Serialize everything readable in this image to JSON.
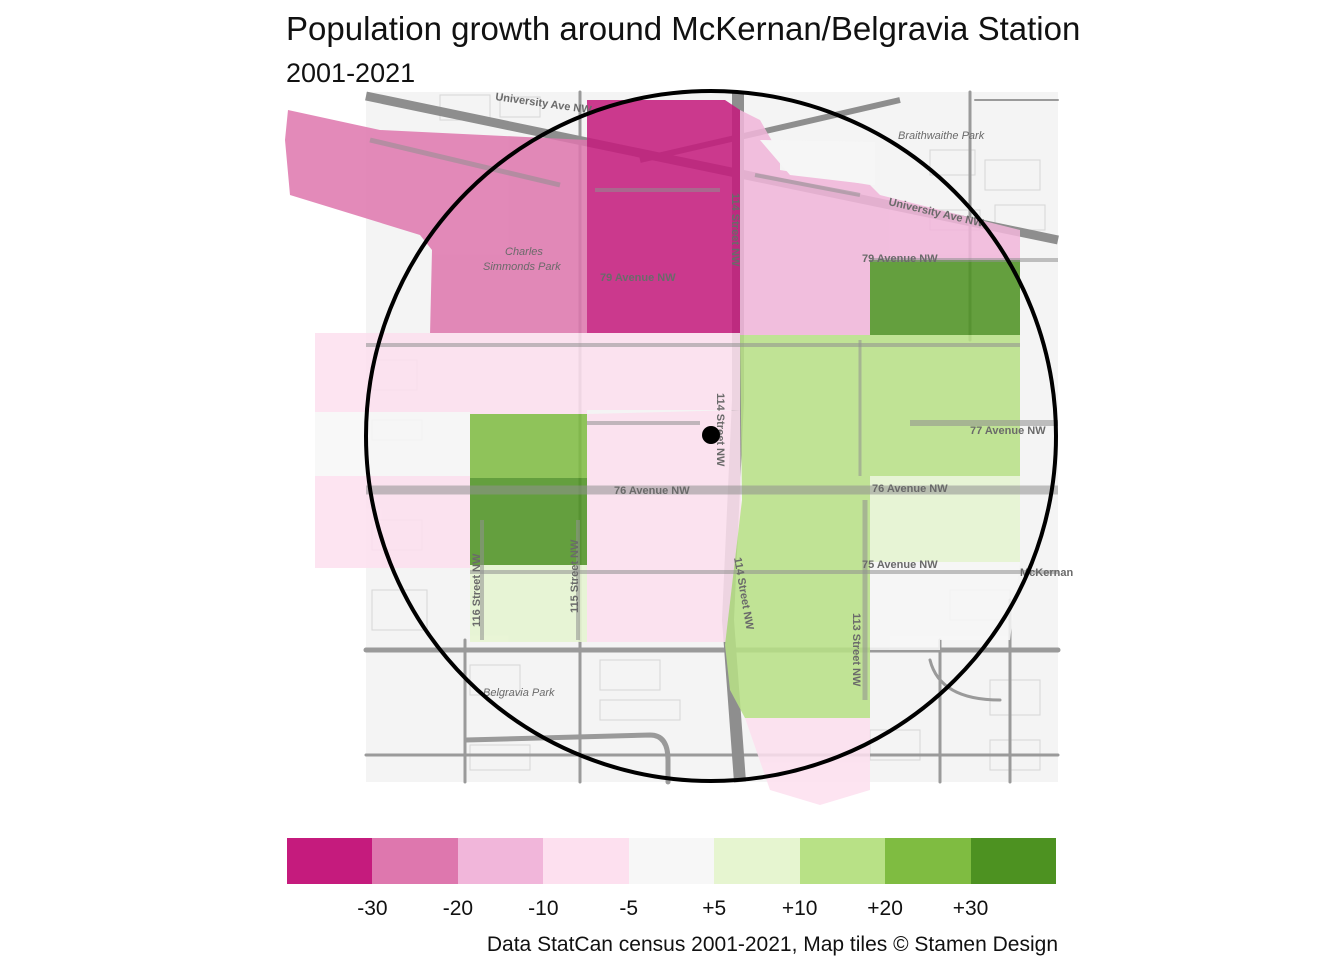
{
  "title": "Population growth around McKernan/Belgravia Station",
  "subtitle": "2001-2021",
  "caption": "Data StatCan census 2001-2021, Map tiles © Stamen Design",
  "map_labels": {
    "university_ave_top": "University Ave NW",
    "university_ave_right": "University Ave NW",
    "braithwaithe_park": "Braithwaithe Park",
    "charles_simmonds_park_1": "Charles",
    "charles_simmonds_park_2": "Simmonds Park",
    "ave79_left": "79 Avenue NW",
    "ave79_right": "79 Avenue NW",
    "ave77": "77 Avenue NW",
    "ave76_left": "76 Avenue NW",
    "ave76_right": "76 Avenue NW",
    "ave75": "75 Avenue NW",
    "mckernan": "McKernan",
    "st114_top": "114 Street NW",
    "st114_mid": "114 Street NW",
    "st114_low": "114 Street NW",
    "st116": "116 Street NW",
    "st115": "115 Street NW",
    "st113": "113 Street NW",
    "belgravia_park": "Belgravia Park"
  },
  "legend": {
    "colors": [
      "#c51b7d",
      "#de77ae",
      "#f1b6da",
      "#fde0ef",
      "#f7f7f7",
      "#e6f5d0",
      "#b8e186",
      "#7fbc41",
      "#4d9221"
    ],
    "tick_labels": [
      "-30",
      "-20",
      "-10",
      "-5",
      "+5",
      "+10",
      "+20",
      "+30"
    ]
  },
  "chart_data": {
    "type": "choropleth",
    "measure": "Population growth 2001-2021",
    "bins": [
      "< -30",
      "-30 to -20",
      "-20 to -10",
      "-10 to -5",
      "-5 to +5",
      "+5 to +10",
      "+10 to +20",
      "+20 to +30",
      "> +30"
    ],
    "station": "McKernan/Belgravia Station",
    "areas_by_class": {
      "strong_decline": 1,
      "decline": 1,
      "moderate_decline": 2,
      "slight_decline": 5,
      "stable": 2,
      "slight_growth": 2,
      "growth": 3,
      "strong_growth": 2
    }
  }
}
